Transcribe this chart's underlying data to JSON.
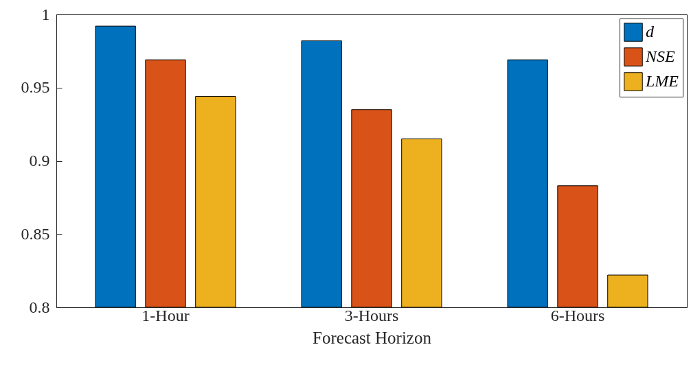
{
  "chart_data": {
    "type": "bar",
    "xlabel": "Forecast Horizon",
    "categories": [
      "1-Hour",
      "3-Hours",
      "6-Hours"
    ],
    "series": [
      {
        "name": "d",
        "color": "#0072bd",
        "values": [
          0.992,
          0.982,
          0.969
        ]
      },
      {
        "name": "NSE",
        "color": "#d95319",
        "values": [
          0.969,
          0.935,
          0.883
        ]
      },
      {
        "name": "LME",
        "color": "#edb120",
        "values": [
          0.944,
          0.915,
          0.822
        ]
      }
    ],
    "ylim": [
      0.8,
      1
    ],
    "yticks": [
      0.8,
      0.85,
      0.9,
      0.95,
      1
    ],
    "grid": false,
    "legend": "top right"
  }
}
